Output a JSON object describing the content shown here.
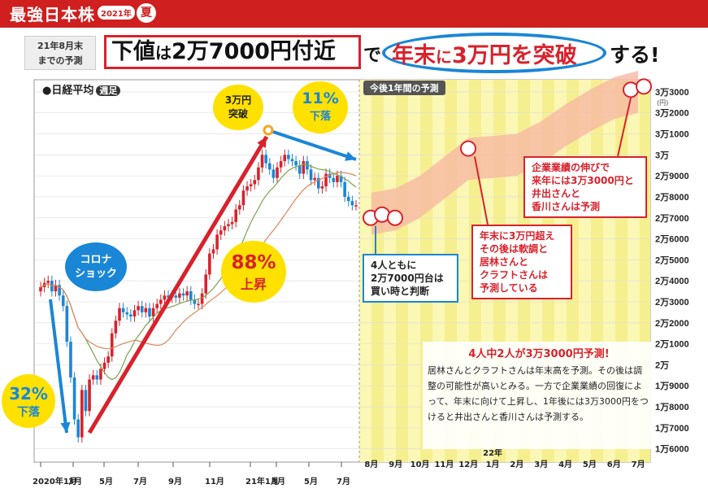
{
  "header": {
    "brand": "最強日本株",
    "badge": "2021年",
    "season": "夏"
  },
  "headline": {
    "period_line1": "21年8月末",
    "period_line2": "までの予測",
    "left_a": "下値",
    "left_b": "は",
    "left_c": "2万7000円付近",
    "connector": "で",
    "right_a": "年末",
    "right_b": "に",
    "right_c": "3万円を突破",
    "suffix": "する!"
  },
  "chart_label": {
    "text": "●日経平均",
    "tag": "週足"
  },
  "forecast_tab": "今後1年間の予測",
  "annotations": {
    "drop32_pct": "32%",
    "drop32_txt": "下落",
    "corona_line1": "コロナ",
    "corona_line2": "ショック",
    "rise88_pct": "88%",
    "rise88_txt": "上昇",
    "break_line1": "3万円",
    "break_line2": "突破",
    "drop11_pct": "11%",
    "drop11_txt": "下落"
  },
  "callouts": {
    "four_people": [
      "4人ともに",
      "2万7000円台は",
      "買い時と判断"
    ],
    "year_end": [
      "年末に3万円超え",
      "その後は軟調と",
      "居林さんと",
      "クラフトさんは",
      "予測している"
    ],
    "next_year": [
      "企業業績の伸びで",
      "来年には3万3000円と",
      "井出さんと",
      "香川さんは予測"
    ]
  },
  "summary": {
    "title": "4人中2人が3万3000円予測!",
    "body": "居林さんとクラフトさんは年末高を予測。その後は調整の可能性が高いとみる。一方で企業業績の回復によって、年末に向けて上昇し、1年後には3万3000円をつけると井出さんと香川さんは予測する。"
  },
  "colors": {
    "up": "#d8222c",
    "down": "#1a86d6",
    "accent_red": "#d8222c",
    "accent_blue": "#1a86d6",
    "forecast_bg": "#fbf7b4",
    "forecast_stripe": "#f3ea7e",
    "band": "#f7b9a4"
  },
  "chart_data": {
    "type": "candlestick",
    "title": "日経平均",
    "subtitle": "週足",
    "y_unit": "円",
    "ylim": [
      26000,
      33500
    ],
    "y_ticks": [
      {
        "value": 33000,
        "label": "3万3000"
      },
      {
        "value": 32000,
        "label": "3万2000"
      },
      {
        "value": 31000,
        "label": "3万1000"
      },
      {
        "value": 30000,
        "label": "3万"
      },
      {
        "value": 29000,
        "label": "2万9000"
      },
      {
        "value": 28000,
        "label": "2万8000"
      },
      {
        "value": 27000,
        "label": "2万7000"
      },
      {
        "value": 26000,
        "label": "2万6000"
      },
      {
        "value": 25000,
        "label": "2万5000"
      },
      {
        "value": 24000,
        "label": "2万4000"
      },
      {
        "value": 23000,
        "label": "2万3000"
      },
      {
        "value": 22000,
        "label": "2万2000"
      },
      {
        "value": 21000,
        "label": "2万1000"
      },
      {
        "value": 20000,
        "label": "2万"
      },
      {
        "value": 19000,
        "label": "1万9000"
      },
      {
        "value": 18000,
        "label": "1万8000"
      },
      {
        "value": 17000,
        "label": "1万7000"
      },
      {
        "value": 16000,
        "label": "1万6000"
      }
    ],
    "y_unit_label": "(円)",
    "x_ticks_history": [
      "2020年1月",
      "3月",
      "5月",
      "7月",
      "9月",
      "11月",
      "21年1月",
      "3月",
      "5月",
      "7月"
    ],
    "x_ticks_forecast": [
      "8月",
      "9月",
      "10月",
      "11月",
      "12月",
      "22年 1月",
      "2月",
      "3月",
      "4月",
      "5月",
      "6月",
      "7月"
    ],
    "weekly_close": [
      23700,
      23900,
      24000,
      23500,
      23800,
      23300,
      22800,
      21100,
      19400,
      17400,
      16550,
      18800,
      17800,
      19300,
      19500,
      19300,
      19800,
      20100,
      20400,
      21500,
      22100,
      22700,
      22500,
      22400,
      22300,
      22600,
      22800,
      22500,
      22700,
      22300,
      22700,
      22900,
      23100,
      23300,
      23200,
      23300,
      23200,
      23400,
      23300,
      23500,
      23100,
      22900,
      22900,
      23400,
      24300,
      25300,
      25500,
      26200,
      26400,
      26600,
      26700,
      26800,
      27400,
      27600,
      28300,
      28500,
      28600,
      28800,
      29400,
      30000,
      29600,
      29300,
      28900,
      29400,
      29700,
      30000,
      29800,
      29700,
      29500,
      29100,
      29700,
      29300,
      28800,
      28900,
      28400,
      28500,
      29100,
      28900,
      28700,
      29000,
      28700,
      28000,
      27800,
      27600,
      27600
    ],
    "forecast_band_center": [
      27200,
      27400,
      28000,
      28900,
      29800,
      29900,
      30000,
      30600,
      31400,
      32100,
      32700,
      33000
    ],
    "forecast_band_width": 1000,
    "analyst_marks": [
      {
        "label": "4人",
        "value": 27000,
        "period": "8月"
      },
      {
        "label": "居林・クラフト",
        "value": 30300,
        "period": "12月"
      },
      {
        "label": "井出・香川",
        "value": 33100,
        "period": "7月"
      }
    ]
  }
}
